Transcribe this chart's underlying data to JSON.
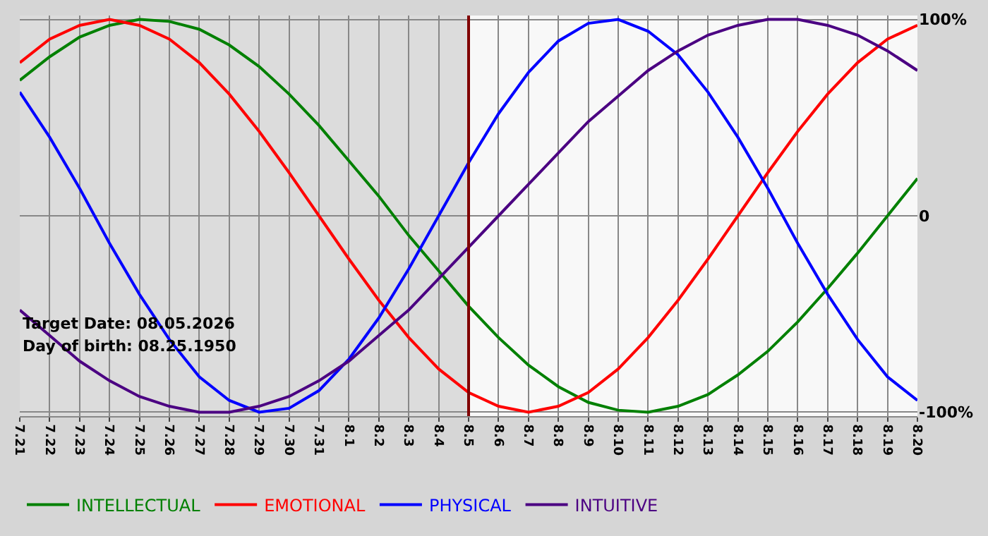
{
  "chart_data": {
    "type": "line",
    "categories": [
      "7.21",
      "7.22",
      "7.23",
      "7.24",
      "7.25",
      "7.26",
      "7.27",
      "7.28",
      "7.29",
      "7.30",
      "7.31",
      "8.1",
      "8.2",
      "8.3",
      "8.4",
      "8.5",
      "8.6",
      "8.7",
      "8.8",
      "8.9",
      "8.10",
      "8.11",
      "8.12",
      "8.13",
      "8.14",
      "8.15",
      "8.16",
      "8.17",
      "8.18",
      "8.19",
      "8.20"
    ],
    "series": [
      {
        "name": "INTELLECTUAL",
        "color": "#008000",
        "values": [
          69,
          81,
          91,
          97,
          100,
          99,
          95,
          87,
          76,
          62,
          46,
          28,
          10,
          -10,
          -28,
          -46,
          -62,
          -76,
          -87,
          -95,
          -99,
          -100,
          -97,
          -91,
          -81,
          -69,
          -54,
          -37,
          -19,
          0,
          19
        ]
      },
      {
        "name": "EMOTIONAL",
        "color": "#ff0000",
        "values": [
          78,
          90,
          97,
          100,
          97,
          90,
          78,
          62,
          43,
          22,
          0,
          -22,
          -43,
          -62,
          -78,
          -90,
          -97,
          -100,
          -97,
          -90,
          -78,
          -62,
          -43,
          -22,
          0,
          22,
          43,
          62,
          78,
          90,
          97
        ]
      },
      {
        "name": "PHYSICAL",
        "color": "#0000ff",
        "values": [
          63,
          40,
          14,
          -14,
          -40,
          -63,
          -82,
          -94,
          -100,
          -98,
          -89,
          -73,
          -52,
          -27,
          0,
          27,
          52,
          73,
          89,
          98,
          100,
          94,
          82,
          63,
          40,
          14,
          -14,
          -40,
          -63,
          -82,
          -94
        ]
      },
      {
        "name": "INTUITIVE",
        "color": "#4b0082",
        "values": [
          -48,
          -61,
          -74,
          -84,
          -92,
          -97,
          -100,
          -100,
          -97,
          -92,
          -84,
          -74,
          -61,
          -48,
          -32,
          -16,
          0,
          16,
          32,
          48,
          61,
          74,
          84,
          92,
          97,
          100,
          100,
          97,
          92,
          84,
          74
        ]
      }
    ],
    "ylim": [
      -102,
      102
    ],
    "yticks": [
      {
        "value": 100,
        "label": "100%"
      },
      0,
      {
        "value": -100,
        "label": "-100%"
      }
    ],
    "grid": true,
    "legend": "bottom left",
    "line_style": "solid",
    "marker": "none",
    "ref_lines": [
      {
        "axis": "x",
        "value": "8.5",
        "color": "#800000"
      }
    ],
    "bands": [
      {
        "axis": "x",
        "from": "7.21",
        "to": "8.5",
        "color": "#dcdcdc"
      }
    ],
    "annotations": [
      "Target Date: 08.05.2026",
      "Day of birth: 08.25.1950"
    ]
  }
}
